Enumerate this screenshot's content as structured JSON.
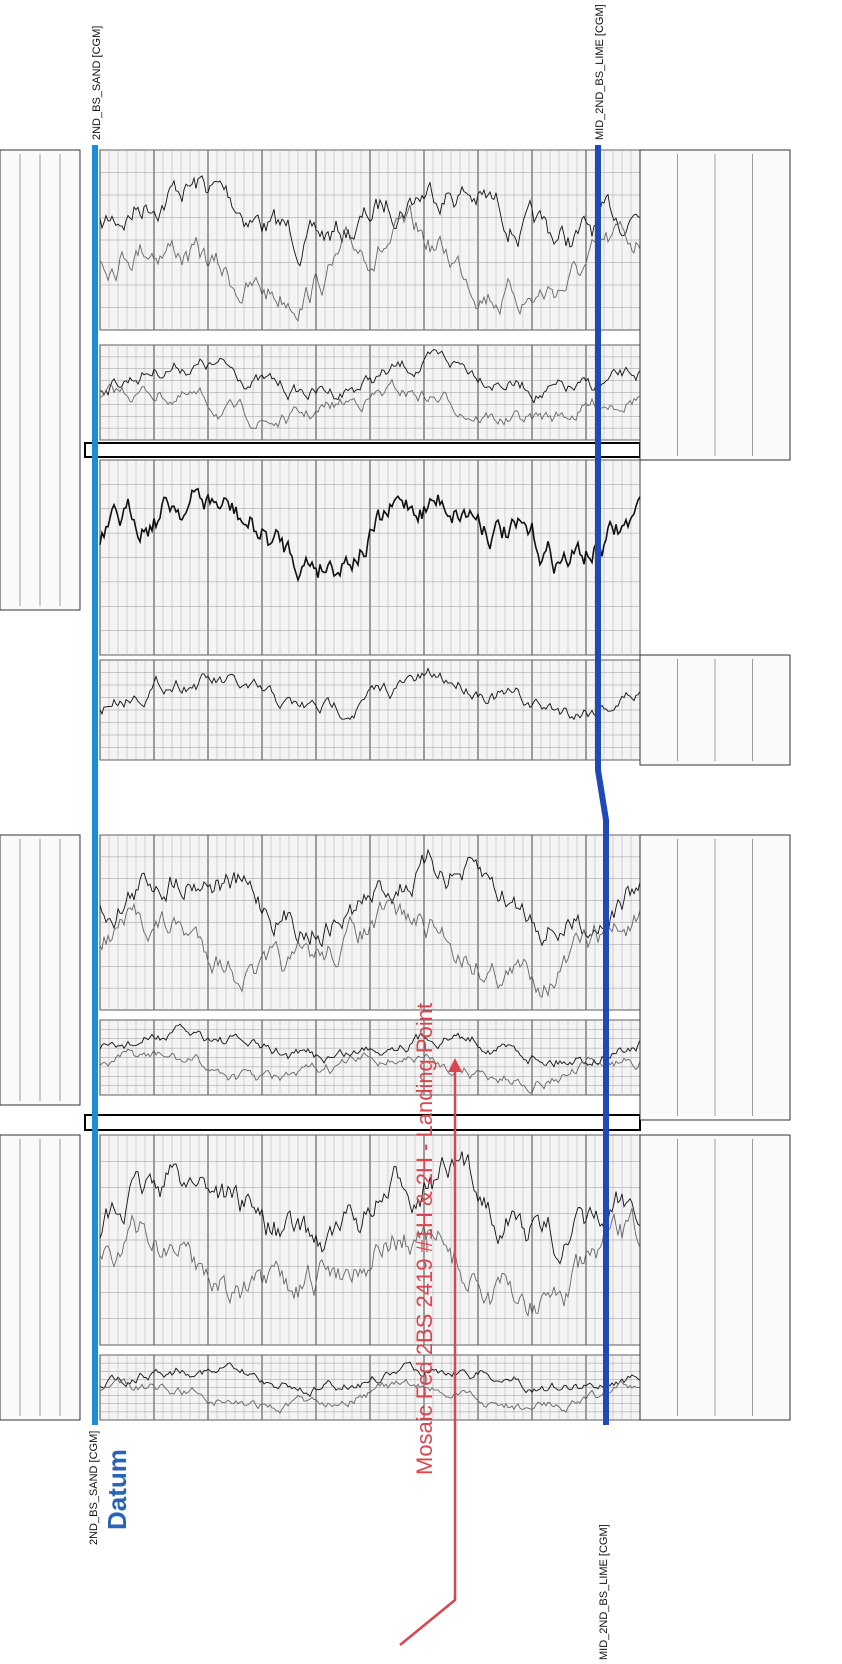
{
  "markers": {
    "top": {
      "label": "2ND_BS_SAND [CGM]"
    },
    "bottom": {
      "label": "MID_2ND_BS_LIME [CGM]"
    }
  },
  "datum": "Datum",
  "annotation": "Mosaic Fed 2BS 2419 #1H & 2H - Landing Point"
}
